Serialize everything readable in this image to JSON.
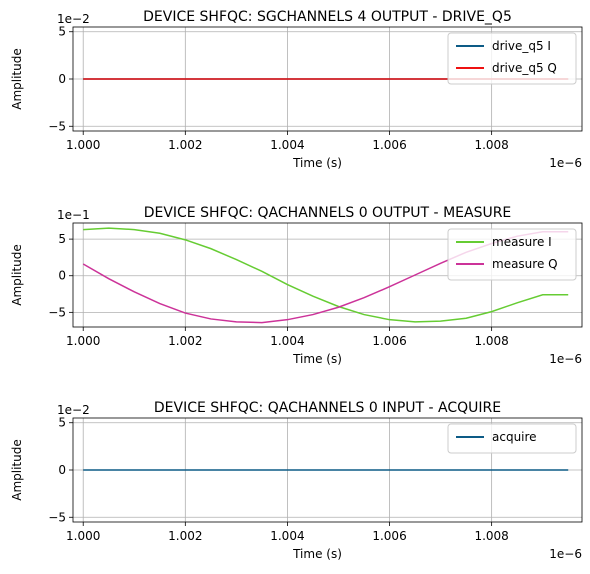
{
  "chart_data": [
    {
      "type": "line",
      "title": "DEVICE SHFQC: SGCHANNELS 4 OUTPUT - DRIVE_Q5",
      "xlabel": "Time (s)",
      "ylabel": "Amplitude",
      "x_offset_label": "1e−6",
      "y_offset_label": "1e−2",
      "xlim": [
        0.9998,
        1.00977
      ],
      "ylim": [
        -5.5,
        5.5
      ],
      "xticks": [
        1.0,
        1.002,
        1.004,
        1.006,
        1.008
      ],
      "xtick_labels": [
        "1.000",
        "1.002",
        "1.004",
        "1.006",
        "1.008"
      ],
      "yticks": [
        -5,
        0,
        5
      ],
      "ytick_labels": [
        "−5",
        "0",
        "5"
      ],
      "grid": true,
      "legend_position": "top-right",
      "x": [
        1.0,
        1.0005,
        1.001,
        1.0015,
        1.002,
        1.0025,
        1.003,
        1.0035,
        1.004,
        1.0045,
        1.005,
        1.0055,
        1.006,
        1.0065,
        1.007,
        1.0075,
        1.008,
        1.0085,
        1.009,
        1.0095
      ],
      "series": [
        {
          "name": "drive_q5 I",
          "color": "#0d5b86",
          "values": [
            0,
            0,
            0,
            0,
            0,
            0,
            0,
            0,
            0,
            0,
            0,
            0,
            0,
            0,
            0,
            0,
            0,
            0,
            0,
            0
          ]
        },
        {
          "name": "drive_q5 Q",
          "color": "#ee1111",
          "values": [
            0,
            0,
            0,
            0,
            0,
            0,
            0,
            0,
            0,
            0,
            0,
            0,
            0,
            0,
            0,
            0,
            0,
            0,
            0,
            0
          ]
        }
      ]
    },
    {
      "type": "line",
      "title": "DEVICE SHFQC: QACHANNELS 0 OUTPUT - MEASURE",
      "xlabel": "Time (s)",
      "ylabel": "Amplitude",
      "x_offset_label": "1e−6",
      "y_offset_label": "1e−1",
      "xlim": [
        0.9998,
        1.00977
      ],
      "ylim": [
        -7.0,
        7.2
      ],
      "xticks": [
        1.0,
        1.002,
        1.004,
        1.006,
        1.008
      ],
      "xtick_labels": [
        "1.000",
        "1.002",
        "1.004",
        "1.006",
        "1.008"
      ],
      "yticks": [
        -5,
        0,
        5
      ],
      "ytick_labels": [
        "−5",
        "0",
        "5"
      ],
      "grid": true,
      "legend_position": "top-right",
      "x": [
        1.0,
        1.0005,
        1.001,
        1.0015,
        1.002,
        1.0025,
        1.003,
        1.0035,
        1.004,
        1.0045,
        1.005,
        1.0055,
        1.006,
        1.0065,
        1.007,
        1.0075,
        1.008,
        1.0085,
        1.009,
        1.0095
      ],
      "series": [
        {
          "name": "measure I",
          "color": "#66cc33",
          "values": [
            6.3,
            6.5,
            6.3,
            5.8,
            4.9,
            3.7,
            2.2,
            0.6,
            -1.2,
            -2.8,
            -4.2,
            -5.3,
            -6.0,
            -6.3,
            -6.2,
            -5.8,
            -4.9,
            -3.7,
            -2.6,
            -2.6
          ]
        },
        {
          "name": "measure Q",
          "color": "#cc3399",
          "values": [
            1.6,
            -0.4,
            -2.2,
            -3.8,
            -5.1,
            -5.9,
            -6.3,
            -6.4,
            -6.0,
            -5.3,
            -4.3,
            -3.0,
            -1.5,
            0.1,
            1.7,
            3.2,
            4.4,
            5.4,
            6.0,
            6.0
          ]
        }
      ]
    },
    {
      "type": "line",
      "title": "DEVICE SHFQC: QACHANNELS 0 INPUT - ACQUIRE",
      "xlabel": "Time (s)",
      "ylabel": "Amplitude",
      "x_offset_label": "1e−6",
      "y_offset_label": "1e−2",
      "xlim": [
        0.9998,
        1.00977
      ],
      "ylim": [
        -5.5,
        5.5
      ],
      "xticks": [
        1.0,
        1.002,
        1.004,
        1.006,
        1.008
      ],
      "xtick_labels": [
        "1.000",
        "1.002",
        "1.004",
        "1.006",
        "1.008"
      ],
      "yticks": [
        -5,
        0,
        5
      ],
      "ytick_labels": [
        "−5",
        "0",
        "5"
      ],
      "grid": true,
      "legend_position": "top-right",
      "x": [
        1.0,
        1.0005,
        1.001,
        1.0015,
        1.002,
        1.0025,
        1.003,
        1.0035,
        1.004,
        1.0045,
        1.005,
        1.0055,
        1.006,
        1.0065,
        1.007,
        1.0075,
        1.008,
        1.0085,
        1.009,
        1.0095
      ],
      "series": [
        {
          "name": "acquire",
          "color": "#0d5b86",
          "values": [
            0,
            0,
            0,
            0,
            0,
            0,
            0,
            0,
            0,
            0,
            0,
            0,
            0,
            0,
            0,
            0,
            0,
            0,
            0,
            0
          ]
        }
      ]
    }
  ]
}
